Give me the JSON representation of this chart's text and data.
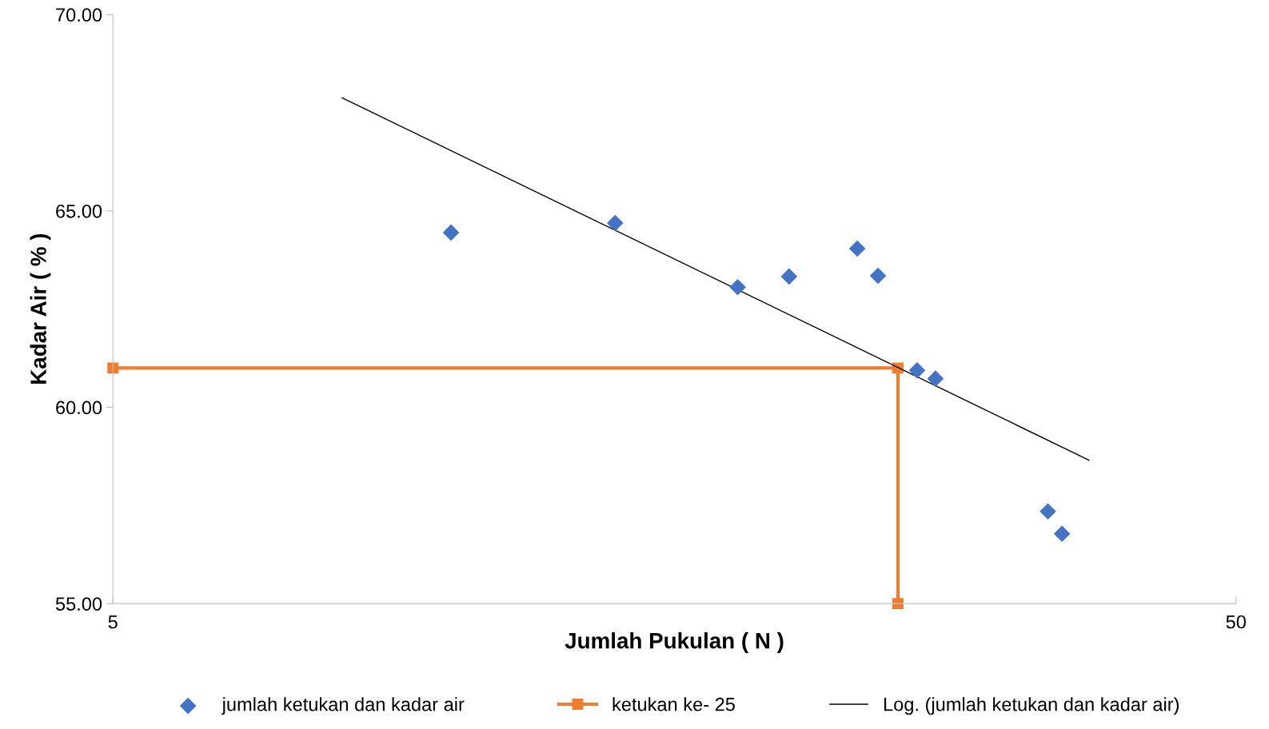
{
  "chart_data": {
    "type": "scatter",
    "xlabel": "Jumlah Pukulan ( N )",
    "ylabel": "Kadar Air ( % )",
    "log": "x",
    "xlim": [
      5,
      50
    ],
    "xticks": [
      5,
      50
    ],
    "ylim": [
      55,
      70
    ],
    "yticks": [
      {
        "value": 55,
        "label": "55.00"
      },
      {
        "value": 60,
        "label": "60.00"
      },
      {
        "value": 65,
        "label": "65.00"
      },
      {
        "value": 70,
        "label": "70.00"
      }
    ],
    "grid": false,
    "legend": "bottom",
    "series": [
      {
        "name": "jumlah ketukan dan kadar air",
        "marker": "diamond",
        "color": "#4472c4",
        "x": [
          10,
          14,
          18,
          20,
          23,
          24,
          26,
          27,
          34,
          35
        ],
        "values": [
          64.45,
          64.69,
          63.06,
          63.33,
          64.04,
          63.35,
          60.94,
          60.73,
          57.35,
          56.78
        ]
      },
      {
        "name": "ketukan ke- 25",
        "type": "line",
        "marker": "square",
        "color": "#ed7d31",
        "x": [
          5,
          25,
          25
        ],
        "values": [
          61,
          61,
          55
        ]
      },
      {
        "name": "Log. (jumlah ketukan dan kadar air)",
        "type": "line",
        "marker": "none",
        "color": "#000000",
        "x": [
          8,
          37
        ],
        "values": [
          67.88,
          58.65
        ]
      }
    ]
  }
}
